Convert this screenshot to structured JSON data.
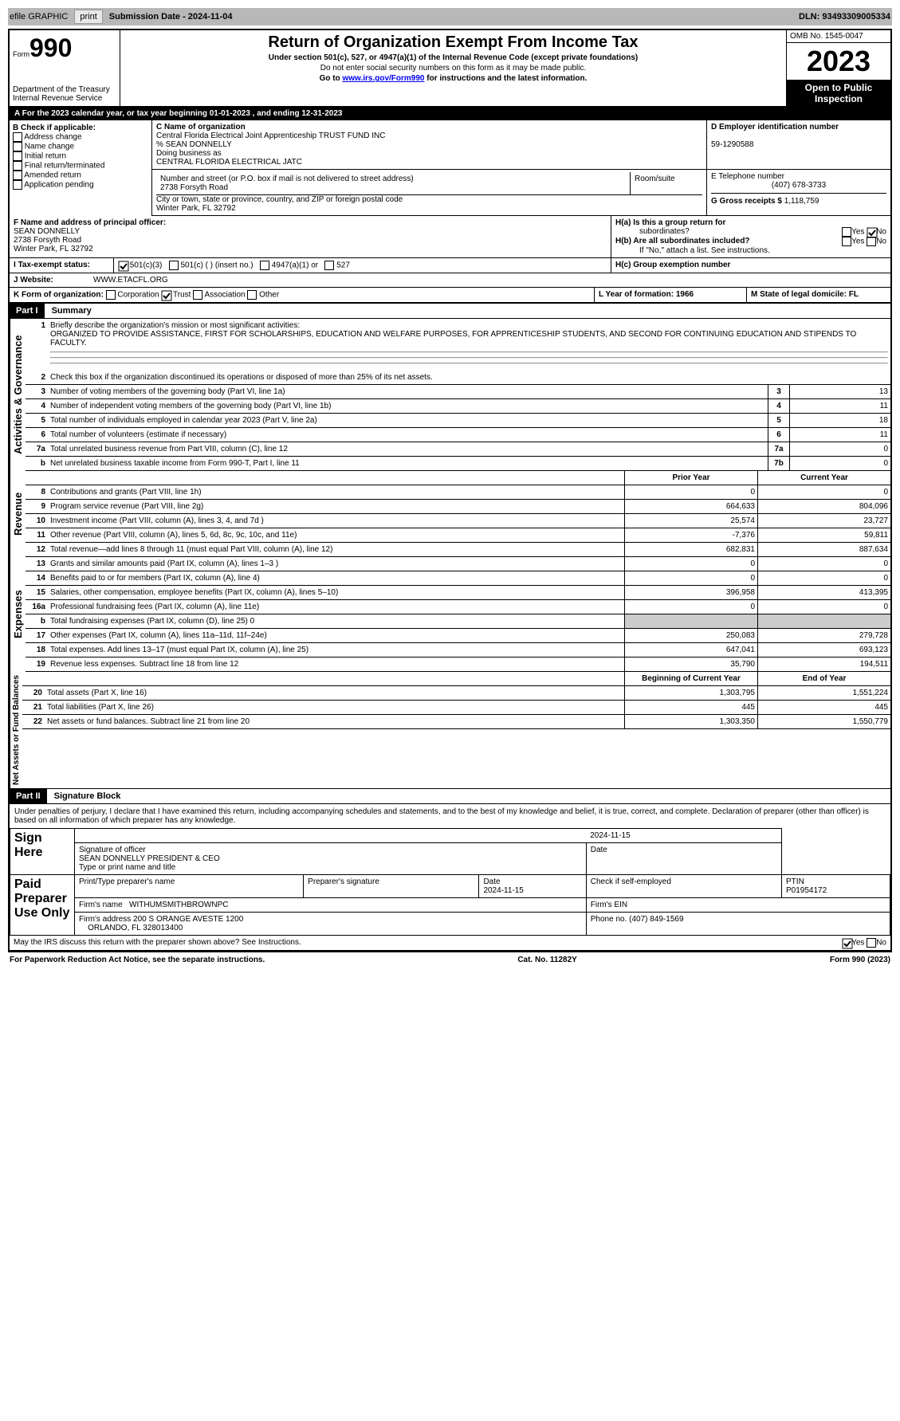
{
  "toolbar": {
    "efile": "efile GRAPHIC",
    "print": "print",
    "subdate_lbl": "Submission Date - 2024-11-04",
    "dln": "DLN: 93493309005334"
  },
  "hdr": {
    "form": "990",
    "form_lbl": "Form",
    "title": "Return of Organization Exempt From Income Tax",
    "sub1": "Under section 501(c), 527, or 4947(a)(1) of the Internal Revenue Code (except private foundations)",
    "sub2": "Do not enter social security numbers on this form as it may be made public.",
    "sub3": "Go to ",
    "sub3_link": "www.irs.gov/Form990",
    "sub3b": " for instructions and the latest information.",
    "dept": "Department of the Treasury",
    "irs": "Internal Revenue Service",
    "omb": "OMB No. 1545-0047",
    "year": "2023",
    "inspect": "Open to Public Inspection"
  },
  "period": {
    "a": "A",
    "txt": "For the 2023 calendar year, or tax year beginning 01-01-2023   , and ending 12-31-2023"
  },
  "b": {
    "hdr": "B Check if applicable:",
    "addr": "Address change",
    "name": "Name change",
    "init": "Initial return",
    "final": "Final return/terminated",
    "amend": "Amended return",
    "app": "Application pending"
  },
  "c": {
    "lbl": "C Name of organization",
    "name": "Central Florida Electrical Joint Apprenticeship TRUST FUND INC",
    "co": "% SEAN DONNELLY",
    "dba_lbl": "Doing business as",
    "dba": "CENTRAL FLORIDA ELECTRICAL JATC",
    "street_lbl": "Number and street (or P.O. box if mail is not delivered to street address)",
    "street": "2738 Forsyth Road",
    "room_lbl": "Room/suite",
    "city_lbl": "City or town, state or province, country, and ZIP or foreign postal code",
    "city": "Winter Park, FL  32792"
  },
  "d": {
    "lbl": "D Employer identification number",
    "ein": "59-1290588"
  },
  "e": {
    "lbl": "E Telephone number",
    "phone": "(407) 678-3733"
  },
  "g": {
    "lbl": "G Gross receipts $",
    "val": "1,118,759"
  },
  "f": {
    "lbl": "F  Name and address of principal officer:",
    "name": "SEAN DONNELLY",
    "addr1": "2738 Forsyth Road",
    "addr2": "Winter Park, FL  32792"
  },
  "h": {
    "a": "H(a)  Is this a group return for",
    "a2": "subordinates?",
    "yes": "Yes",
    "no": "No",
    "b": "H(b)  Are all subordinates included?",
    "b2": "If \"No,\" attach a list. See instructions.",
    "c": "H(c)  Group exemption number"
  },
  "i": {
    "lbl": "Tax-exempt status:",
    "o1": "501(c)(3)",
    "o2": "501(c) (  ) (insert no.)",
    "o3": "4947(a)(1) or",
    "o4": "527"
  },
  "j": {
    "lbl": "Website:",
    "val": "WWW.ETACFL.ORG"
  },
  "k": {
    "lbl": "K Form of organization:",
    "corp": "Corporation",
    "trust": "Trust",
    "assoc": "Association",
    "other": "Other"
  },
  "l": {
    "lbl": "L Year of formation: 1966"
  },
  "m": {
    "lbl": "M State of legal domicile: FL"
  },
  "p1": {
    "hdr": "Part I",
    "title": "Summary",
    "tab_ag": "Activities & Governance",
    "tab_r": "Revenue",
    "tab_e": "Expenses",
    "tab_na": "Net Assets or Fund Balances",
    "l1_lbl": "Briefly describe the organization's mission or most significant activities:",
    "l1": "ORGANIZED TO PROVIDE ASSISTANCE, FIRST FOR SCHOLARSHIPS, EDUCATION AND WELFARE PURPOSES, FOR APPRENTICESHIP STUDENTS, AND SECOND FOR CONTINUING EDUCATION AND STIPENDS TO FACULTY.",
    "l2": "Check this box     if the organization discontinued its operations or disposed of more than 25% of its net assets.",
    "lines_ag": [
      {
        "n": "3",
        "t": "Number of voting members of the governing body (Part VI, line 1a)",
        "b": "3",
        "v": "13"
      },
      {
        "n": "4",
        "t": "Number of independent voting members of the governing body (Part VI, line 1b)",
        "b": "4",
        "v": "11"
      },
      {
        "n": "5",
        "t": "Total number of individuals employed in calendar year 2023 (Part V, line 2a)",
        "b": "5",
        "v": "18"
      },
      {
        "n": "6",
        "t": "Total number of volunteers (estimate if necessary)",
        "b": "6",
        "v": "11"
      },
      {
        "n": "7a",
        "t": "Total unrelated business revenue from Part VIII, column (C), line 12",
        "b": "7a",
        "v": "0"
      },
      {
        "n": "b",
        "t": "Net unrelated business taxable income from Form 990-T, Part I, line 11",
        "b": "7b",
        "v": "0"
      }
    ],
    "pycy_hdr": {
      "py": "Prior Year",
      "cy": "Current Year"
    },
    "lines_r": [
      {
        "n": "8",
        "t": "Contributions and grants (Part VIII, line 1h)",
        "py": "0",
        "cy": "0"
      },
      {
        "n": "9",
        "t": "Program service revenue (Part VIII, line 2g)",
        "py": "664,633",
        "cy": "804,096"
      },
      {
        "n": "10",
        "t": "Investment income (Part VIII, column (A), lines 3, 4, and 7d )",
        "py": "25,574",
        "cy": "23,727"
      },
      {
        "n": "11",
        "t": "Other revenue (Part VIII, column (A), lines 5, 6d, 8c, 9c, 10c, and 11e)",
        "py": "-7,376",
        "cy": "59,811"
      },
      {
        "n": "12",
        "t": "Total revenue—add lines 8 through 11 (must equal Part VIII, column (A), line 12)",
        "py": "682,831",
        "cy": "887,634"
      }
    ],
    "lines_e": [
      {
        "n": "13",
        "t": "Grants and similar amounts paid (Part IX, column (A), lines 1–3 )",
        "py": "0",
        "cy": "0"
      },
      {
        "n": "14",
        "t": "Benefits paid to or for members (Part IX, column (A), line 4)",
        "py": "0",
        "cy": "0"
      },
      {
        "n": "15",
        "t": "Salaries, other compensation, employee benefits (Part IX, column (A), lines 5–10)",
        "py": "396,958",
        "cy": "413,395"
      },
      {
        "n": "16a",
        "t": "Professional fundraising fees (Part IX, column (A), line 11e)",
        "py": "0",
        "cy": "0"
      },
      {
        "n": "b",
        "t": "Total fundraising expenses (Part IX, column (D), line 25) 0",
        "py": "",
        "cy": "",
        "gray": true
      },
      {
        "n": "17",
        "t": "Other expenses (Part IX, column (A), lines 11a–11d, 11f–24e)",
        "py": "250,083",
        "cy": "279,728"
      },
      {
        "n": "18",
        "t": "Total expenses. Add lines 13–17 (must equal Part IX, column (A), line 25)",
        "py": "647,041",
        "cy": "693,123"
      },
      {
        "n": "19",
        "t": "Revenue less expenses. Subtract line 18 from line 12",
        "py": "35,790",
        "cy": "194,511"
      }
    ],
    "na_hdr": {
      "by": "Beginning of Current Year",
      "ey": "End of Year"
    },
    "lines_na": [
      {
        "n": "20",
        "t": "Total assets (Part X, line 16)",
        "py": "1,303,795",
        "cy": "1,551,224"
      },
      {
        "n": "21",
        "t": "Total liabilities (Part X, line 26)",
        "py": "445",
        "cy": "445"
      },
      {
        "n": "22",
        "t": "Net assets or fund balances. Subtract line 21 from line 20",
        "py": "1,303,350",
        "cy": "1,550,779"
      }
    ]
  },
  "p2": {
    "hdr": "Part II",
    "title": "Signature Block",
    "decl": "Under penalties of perjury, I declare that I have examined this return, including accompanying schedules and statements, and to the best of my knowledge and belief, it is true, correct, and complete. Declaration of preparer (other than officer) is based on all information of which preparer has any knowledge.",
    "sign": "Sign Here",
    "sig_lbl": "Signature of officer",
    "sig_name": "SEAN DONNELLY PRESIDENT & CEO",
    "sig_type": "Type or print name and title",
    "date_lbl": "Date",
    "date": "2024-11-15",
    "paid": "Paid Preparer Use Only",
    "prep_name_lbl": "Print/Type preparer's name",
    "prep_sig_lbl": "Preparer's signature",
    "prep_date": "2024-11-15",
    "self": "Check     if self-employed",
    "ptin_lbl": "PTIN",
    "ptin": "P01954172",
    "firm_name_lbl": "Firm's name",
    "firm_name": "WITHUMSMITHBROWNPC",
    "firm_ein_lbl": "Firm's EIN",
    "firm_addr_lbl": "Firm's address",
    "firm_addr": "200 S ORANGE AVESTE 1200",
    "firm_city": "ORLANDO, FL  328013400",
    "phone_lbl": "Phone no.",
    "phone": "(407) 849-1569",
    "discuss": "May the IRS discuss this return with the preparer shown above? See Instructions."
  },
  "footer": {
    "l": "For Paperwork Reduction Act Notice, see the separate instructions.",
    "c": "Cat. No. 11282Y",
    "r": "Form 990 (2023)"
  }
}
